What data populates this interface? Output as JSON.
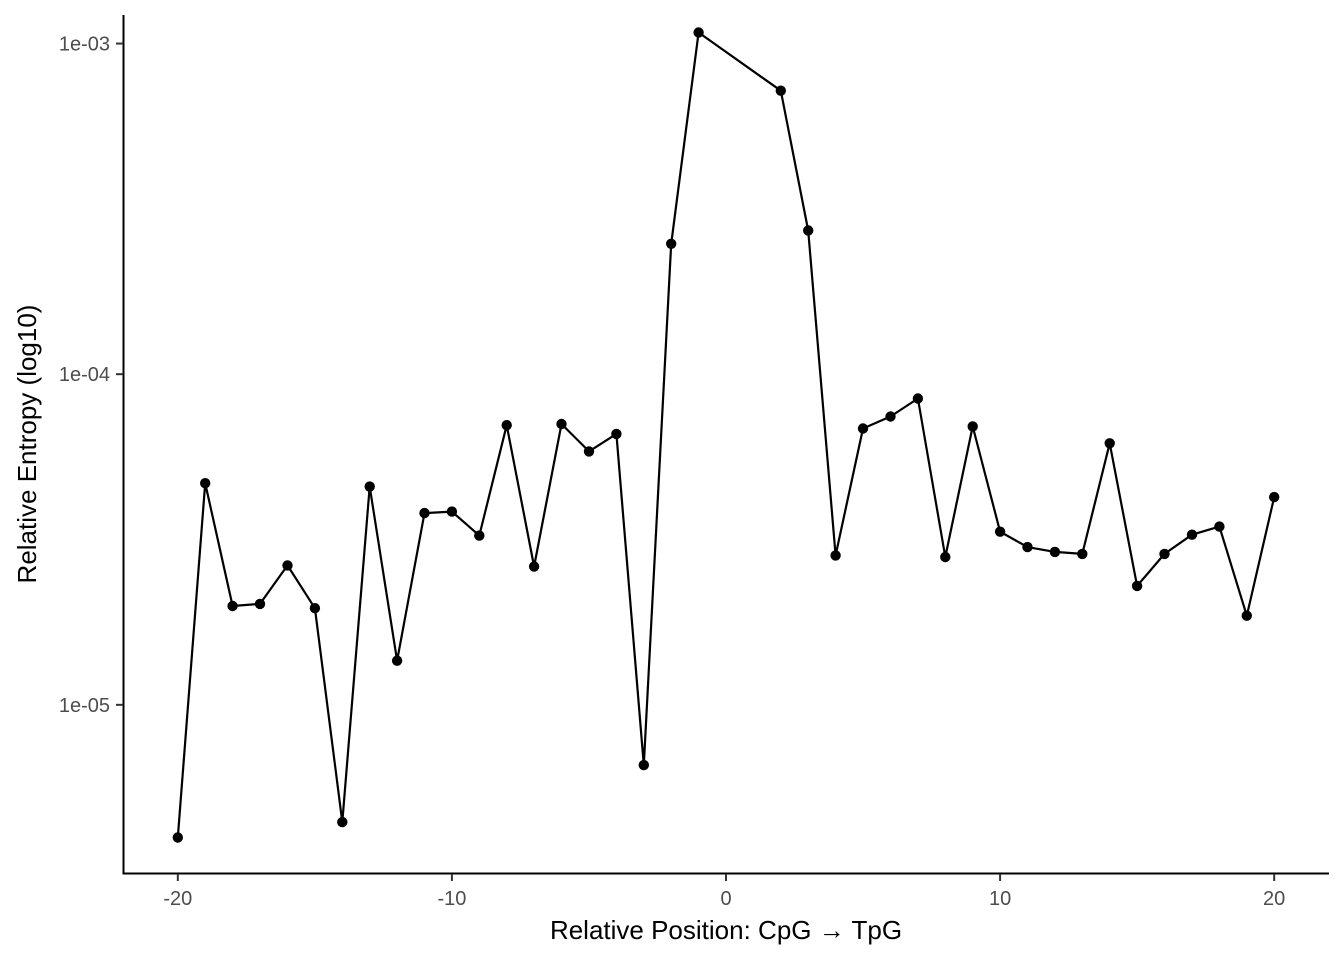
{
  "chart_data": {
    "type": "line",
    "title": "",
    "xlabel": "Relative Position: CpG → TpG",
    "ylabel": "Relative Entropy (log10)",
    "yscale": "log10",
    "xlim": [
      -22,
      22
    ],
    "ylim": [
      3.1e-06,
      0.00122
    ],
    "grid": false,
    "legend": "none",
    "x_ticks": [
      -20,
      -10,
      0,
      10,
      20
    ],
    "x_tick_labels": [
      "-20",
      "-10",
      "0",
      "10",
      "20"
    ],
    "y_ticks": [
      1e-05,
      0.0001,
      0.001
    ],
    "y_tick_labels": [
      "1e-05",
      "1e-04",
      "1e-03"
    ],
    "line_color": "#000000",
    "point_color": "#000000",
    "series": [
      {
        "x": [
          -20,
          -19,
          -18,
          -17,
          -16,
          -15,
          -14,
          -13,
          -12,
          -11,
          -10,
          -9,
          -8,
          -7,
          -6,
          -5,
          -4,
          -3,
          -2,
          -1,
          2,
          3,
          4,
          5,
          6,
          7,
          8,
          9,
          10,
          11,
          12,
          13,
          14,
          15,
          16,
          17,
          18,
          19,
          20
        ],
        "y": [
          3.97e-06,
          4.68e-05,
          1.99e-05,
          2.02e-05,
          2.64e-05,
          1.96e-05,
          4.42e-06,
          4.57e-05,
          1.36e-05,
          3.8e-05,
          3.84e-05,
          3.25e-05,
          7.01e-05,
          2.62e-05,
          7.07e-05,
          5.84e-05,
          6.6e-05,
          6.57e-06,
          0.000248,
          0.00108,
          0.00072,
          0.000272,
          2.83e-05,
          6.85e-05,
          7.45e-05,
          8.44e-05,
          2.8e-05,
          6.95e-05,
          3.34e-05,
          3e-05,
          2.9e-05,
          2.86e-05,
          6.18e-05,
          2.29e-05,
          2.86e-05,
          3.27e-05,
          3.46e-05,
          1.86e-05,
          4.25e-05
        ]
      }
    ]
  }
}
